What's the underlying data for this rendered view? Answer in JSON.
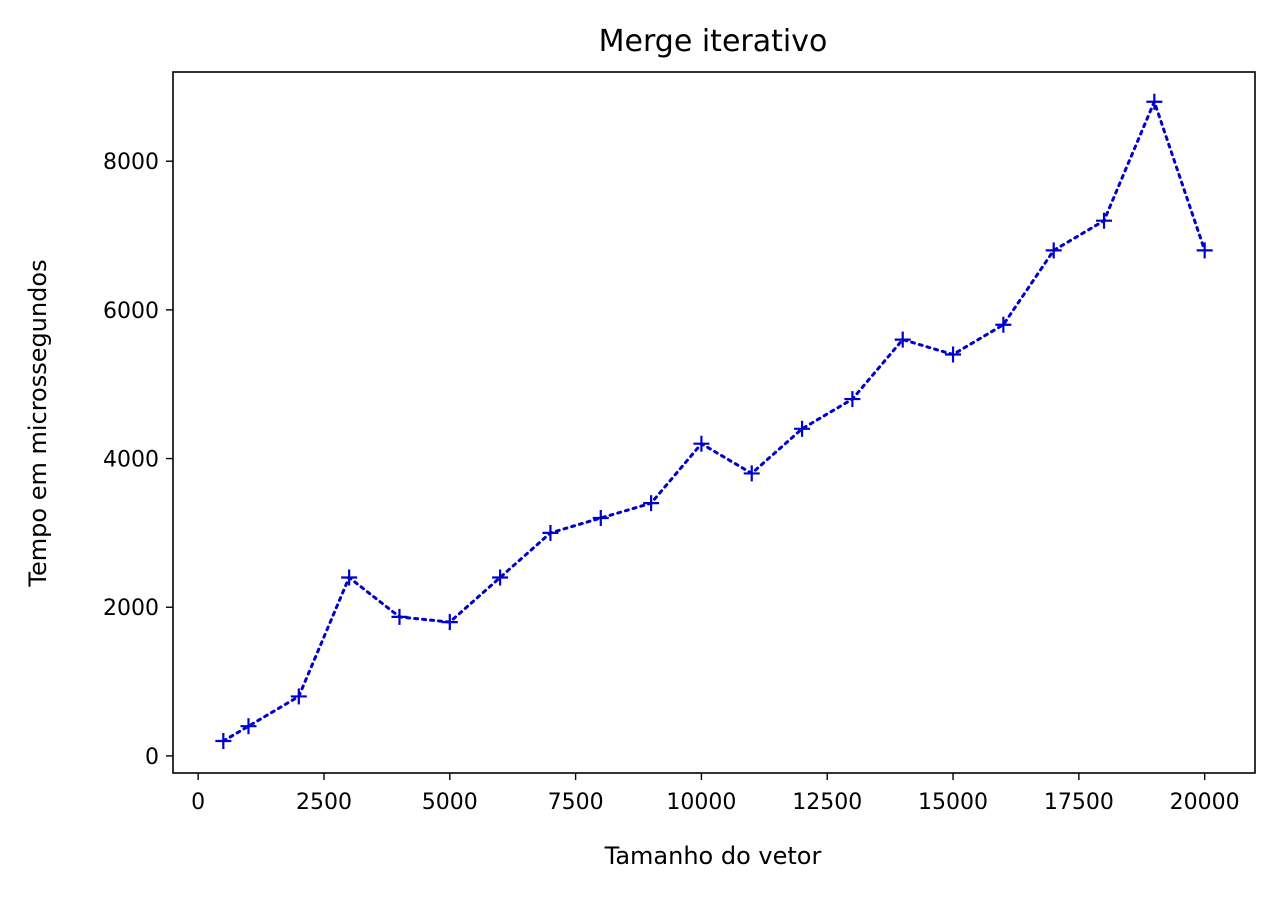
{
  "chart_data": {
    "type": "line",
    "title": "Merge iterativo",
    "xlabel": "Tamanho do vetor",
    "ylabel": "Tempo em microssegundos",
    "xlim": [
      -500,
      21000
    ],
    "ylim": [
      -230,
      9200
    ],
    "xticks": [
      0,
      2500,
      5000,
      7500,
      10000,
      12500,
      15000,
      17500,
      20000
    ],
    "yticks": [
      0,
      2000,
      4000,
      6000,
      8000
    ],
    "grid": false,
    "series": [
      {
        "line_style": "dotted",
        "marker": "+",
        "color": "#0000cc",
        "x": [
          500,
          1000,
          2000,
          3000,
          4000,
          5000,
          6000,
          7000,
          8000,
          9000,
          10000,
          11000,
          12000,
          13000,
          14000,
          15000,
          16000,
          17000,
          18000,
          19000,
          20000
        ],
        "y": [
          200,
          400,
          800,
          2400,
          1870,
          1800,
          2400,
          3000,
          3200,
          3400,
          4200,
          3800,
          4400,
          4800,
          5600,
          5400,
          5800,
          6800,
          7200,
          8800,
          6800
        ]
      }
    ]
  }
}
